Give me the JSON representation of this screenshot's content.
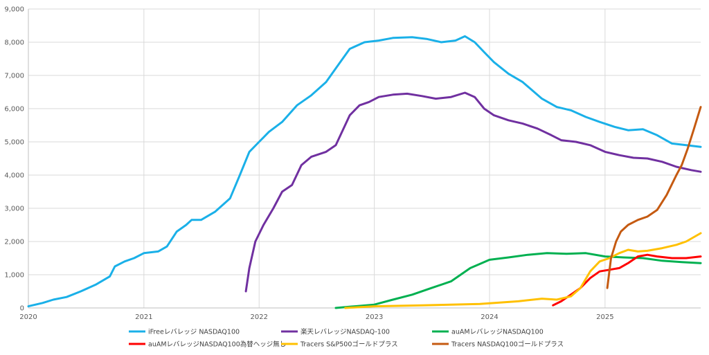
{
  "chart_data": {
    "type": "line",
    "title": "",
    "xlabel": "",
    "ylabel": "",
    "ylim": [
      0,
      9000
    ],
    "xlim": [
      "2020-01-01",
      "2025-10-31"
    ],
    "grid": true,
    "legend_position": "bottom",
    "y_ticks": [
      {
        "value": 0,
        "label": "0"
      },
      {
        "value": 1000,
        "label": "1,000"
      },
      {
        "value": 2000,
        "label": "2,000"
      },
      {
        "value": 3000,
        "label": "3,000"
      },
      {
        "value": 4000,
        "label": "4,000"
      },
      {
        "value": 5000,
        "label": "5,000"
      },
      {
        "value": 6000,
        "label": "6,000"
      },
      {
        "value": 7000,
        "label": "7,000"
      },
      {
        "value": 8000,
        "label": "8,000"
      },
      {
        "value": 9000,
        "label": "9,000"
      }
    ],
    "x_ticks": [
      {
        "value": "2020-01-01",
        "label": "2020"
      },
      {
        "value": "2021-01-01",
        "label": "2021"
      },
      {
        "value": "2022-01-01",
        "label": "2022"
      },
      {
        "value": "2023-01-01",
        "label": "2023"
      },
      {
        "value": "2024-01-01",
        "label": "2024"
      },
      {
        "value": "2025-01-01",
        "label": "2025"
      }
    ],
    "series": [
      {
        "name": "iFreeレバレッジ NASDAQ100",
        "color": "#1ab0e8",
        "points": [
          [
            "2020-01-01",
            50
          ],
          [
            "2020-02-15",
            150
          ],
          [
            "2020-03-20",
            250
          ],
          [
            "2020-05-01",
            330
          ],
          [
            "2020-06-15",
            500
          ],
          [
            "2020-08-01",
            700
          ],
          [
            "2020-09-15",
            950
          ],
          [
            "2020-10-01",
            1250
          ],
          [
            "2020-11-01",
            1400
          ],
          [
            "2020-12-01",
            1500
          ],
          [
            "2021-01-01",
            1650
          ],
          [
            "2021-02-15",
            1700
          ],
          [
            "2021-03-15",
            1850
          ],
          [
            "2021-04-15",
            2300
          ],
          [
            "2021-05-15",
            2500
          ],
          [
            "2021-06-01",
            2650
          ],
          [
            "2021-07-01",
            2650
          ],
          [
            "2021-08-15",
            2900
          ],
          [
            "2021-10-01",
            3300
          ],
          [
            "2021-11-01",
            4000
          ],
          [
            "2021-12-01",
            4700
          ],
          [
            "2022-01-01",
            5000
          ],
          [
            "2022-02-01",
            5300
          ],
          [
            "2022-03-15",
            5600
          ],
          [
            "2022-05-01",
            6100
          ],
          [
            "2022-06-15",
            6400
          ],
          [
            "2022-08-01",
            6800
          ],
          [
            "2022-09-15",
            7400
          ],
          [
            "2022-10-15",
            7800
          ],
          [
            "2022-12-01",
            8000
          ],
          [
            "2023-01-15",
            8050
          ],
          [
            "2023-03-01",
            8130
          ],
          [
            "2023-05-01",
            8150
          ],
          [
            "2023-06-15",
            8100
          ],
          [
            "2023-08-01",
            8000
          ],
          [
            "2023-09-15",
            8050
          ],
          [
            "2023-10-15",
            8180
          ],
          [
            "2023-11-15",
            8000
          ],
          [
            "2023-12-15",
            7700
          ],
          [
            "2024-01-15",
            7400
          ],
          [
            "2024-03-01",
            7050
          ],
          [
            "2024-04-15",
            6800
          ],
          [
            "2024-06-15",
            6300
          ],
          [
            "2024-08-01",
            6050
          ],
          [
            "2024-09-15",
            5950
          ],
          [
            "2024-11-01",
            5750
          ],
          [
            "2024-12-15",
            5600
          ],
          [
            "2025-02-01",
            5450
          ],
          [
            "2025-03-15",
            5350
          ],
          [
            "2025-05-01",
            5380
          ],
          [
            "2025-06-15",
            5200
          ],
          [
            "2025-08-01",
            4950
          ],
          [
            "2025-09-15",
            4900
          ],
          [
            "2025-10-31",
            4850
          ]
        ]
      },
      {
        "name": "楽天レバレッジNASDAQ-100",
        "color": "#7030a0",
        "points": [
          [
            "2021-11-20",
            500
          ],
          [
            "2021-12-01",
            1200
          ],
          [
            "2021-12-20",
            2000
          ],
          [
            "2022-01-15",
            2500
          ],
          [
            "2022-02-15",
            3000
          ],
          [
            "2022-03-15",
            3500
          ],
          [
            "2022-04-15",
            3700
          ],
          [
            "2022-05-15",
            4300
          ],
          [
            "2022-06-15",
            4550
          ],
          [
            "2022-08-01",
            4700
          ],
          [
            "2022-09-01",
            4900
          ],
          [
            "2022-10-15",
            5800
          ],
          [
            "2022-11-15",
            6100
          ],
          [
            "2022-12-15",
            6200
          ],
          [
            "2023-01-15",
            6350
          ],
          [
            "2023-03-01",
            6420
          ],
          [
            "2023-04-15",
            6450
          ],
          [
            "2023-06-01",
            6380
          ],
          [
            "2023-07-15",
            6300
          ],
          [
            "2023-09-01",
            6350
          ],
          [
            "2023-10-15",
            6480
          ],
          [
            "2023-11-15",
            6350
          ],
          [
            "2023-12-15",
            6000
          ],
          [
            "2024-01-15",
            5800
          ],
          [
            "2024-03-01",
            5650
          ],
          [
            "2024-04-15",
            5550
          ],
          [
            "2024-06-01",
            5400
          ],
          [
            "2024-07-15",
            5200
          ],
          [
            "2024-08-15",
            5050
          ],
          [
            "2024-10-01",
            5000
          ],
          [
            "2024-11-15",
            4900
          ],
          [
            "2025-01-01",
            4700
          ],
          [
            "2025-02-15",
            4600
          ],
          [
            "2025-04-01",
            4520
          ],
          [
            "2025-05-15",
            4500
          ],
          [
            "2025-07-01",
            4400
          ],
          [
            "2025-08-15",
            4250
          ],
          [
            "2025-10-01",
            4150
          ],
          [
            "2025-10-31",
            4100
          ]
        ]
      },
      {
        "name": "auAMレバレッジNASDAQ100",
        "color": "#00b050",
        "points": [
          [
            "2022-09-01",
            0
          ],
          [
            "2022-11-01",
            50
          ],
          [
            "2023-01-01",
            100
          ],
          [
            "2023-03-01",
            250
          ],
          [
            "2023-05-01",
            400
          ],
          [
            "2023-07-01",
            600
          ],
          [
            "2023-09-01",
            800
          ],
          [
            "2023-11-01",
            1200
          ],
          [
            "2024-01-01",
            1450
          ],
          [
            "2024-03-01",
            1520
          ],
          [
            "2024-05-01",
            1600
          ],
          [
            "2024-07-01",
            1650
          ],
          [
            "2024-09-01",
            1630
          ],
          [
            "2024-11-01",
            1650
          ],
          [
            "2025-01-01",
            1550
          ],
          [
            "2025-03-01",
            1520
          ],
          [
            "2025-05-01",
            1500
          ],
          [
            "2025-07-01",
            1420
          ],
          [
            "2025-09-01",
            1380
          ],
          [
            "2025-10-31",
            1350
          ]
        ]
      },
      {
        "name": "auAMレバレッジNASDAQ100為替ヘッジ無し",
        "color": "#ff0000",
        "points": [
          [
            "2024-07-20",
            80
          ],
          [
            "2024-08-15",
            200
          ],
          [
            "2024-09-15",
            400
          ],
          [
            "2024-10-15",
            600
          ],
          [
            "2024-11-15",
            900
          ],
          [
            "2024-12-15",
            1100
          ],
          [
            "2025-01-15",
            1150
          ],
          [
            "2025-02-15",
            1200
          ],
          [
            "2025-03-15",
            1350
          ],
          [
            "2025-04-15",
            1550
          ],
          [
            "2025-05-15",
            1600
          ],
          [
            "2025-06-15",
            1550
          ],
          [
            "2025-08-01",
            1500
          ],
          [
            "2025-09-15",
            1500
          ],
          [
            "2025-10-31",
            1550
          ]
        ]
      },
      {
        "name": "Tracers S&P500ゴールドプラス",
        "color": "#ffc000",
        "points": [
          [
            "2022-10-01",
            0
          ],
          [
            "2023-01-01",
            50
          ],
          [
            "2023-06-01",
            80
          ],
          [
            "2023-12-01",
            120
          ],
          [
            "2024-04-01",
            200
          ],
          [
            "2024-06-15",
            280
          ],
          [
            "2024-08-01",
            250
          ],
          [
            "2024-09-15",
            350
          ],
          [
            "2024-10-15",
            600
          ],
          [
            "2024-11-15",
            1100
          ],
          [
            "2024-12-15",
            1400
          ],
          [
            "2025-01-15",
            1500
          ],
          [
            "2025-02-15",
            1650
          ],
          [
            "2025-03-15",
            1750
          ],
          [
            "2025-04-15",
            1700
          ],
          [
            "2025-05-15",
            1720
          ],
          [
            "2025-07-01",
            1800
          ],
          [
            "2025-08-15",
            1900
          ],
          [
            "2025-09-15",
            2000
          ],
          [
            "2025-10-31",
            2250
          ]
        ]
      },
      {
        "name": "Tracers NASDAQ100ゴールドプラス",
        "color": "#c55a11",
        "points": [
          [
            "2025-01-08",
            600
          ],
          [
            "2025-01-20",
            1500
          ],
          [
            "2025-02-05",
            2000
          ],
          [
            "2025-02-20",
            2300
          ],
          [
            "2025-03-15",
            2500
          ],
          [
            "2025-04-15",
            2650
          ],
          [
            "2025-05-15",
            2750
          ],
          [
            "2025-06-15",
            2950
          ],
          [
            "2025-07-15",
            3400
          ],
          [
            "2025-08-15",
            4000
          ],
          [
            "2025-09-01",
            4300
          ],
          [
            "2025-09-20",
            4800
          ],
          [
            "2025-10-10",
            5400
          ],
          [
            "2025-10-31",
            6050
          ]
        ]
      }
    ]
  }
}
